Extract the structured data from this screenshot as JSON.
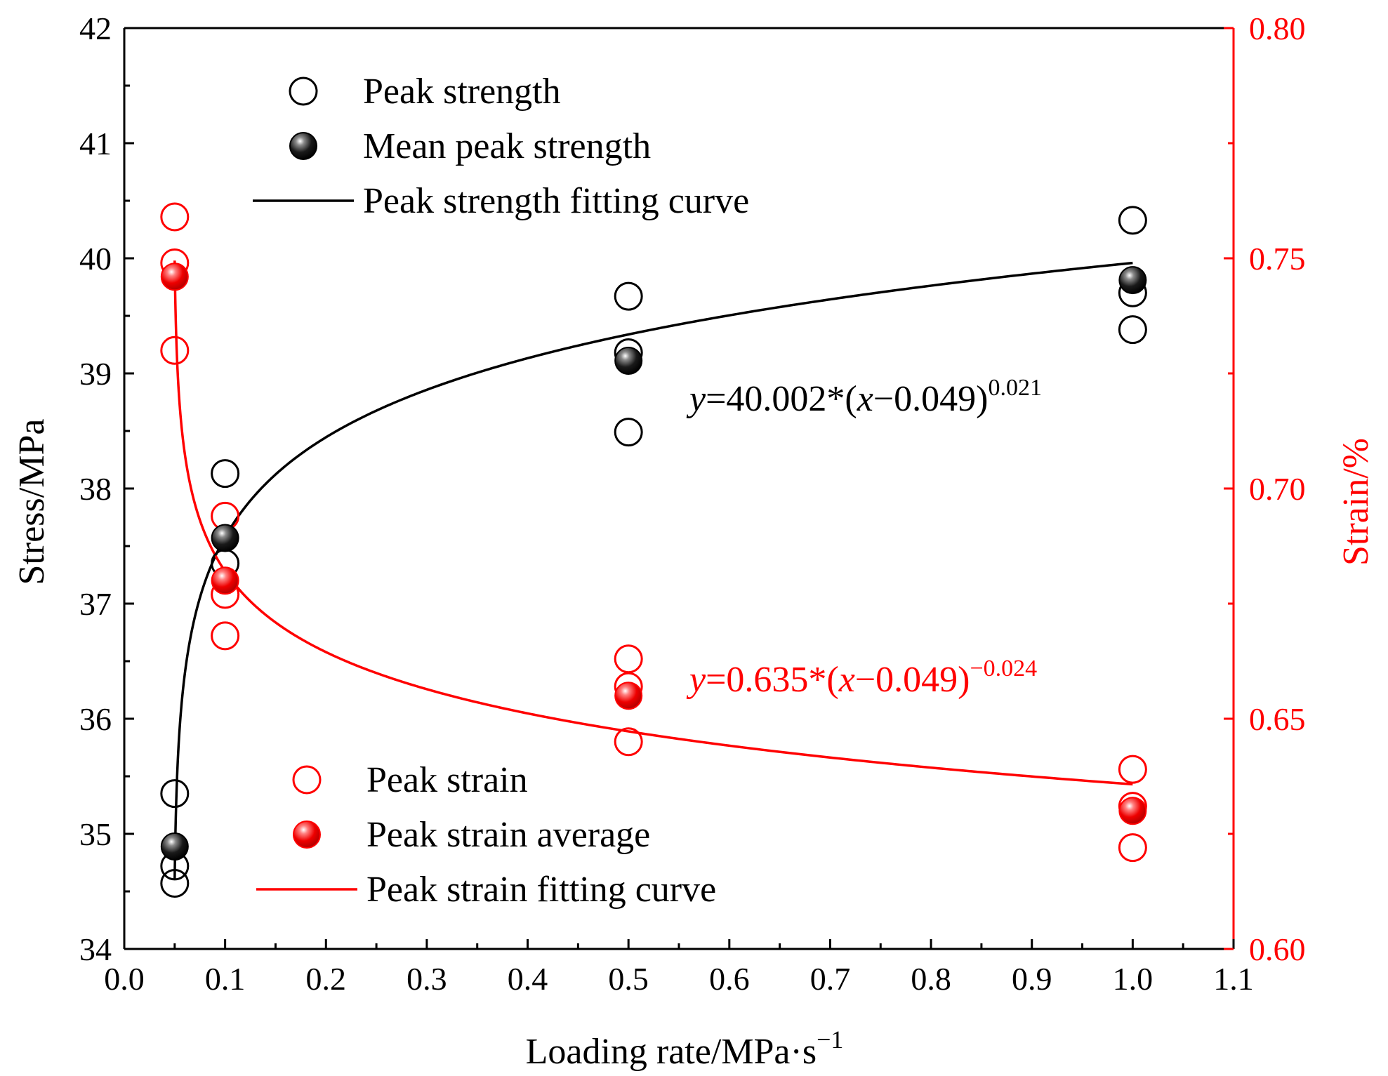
{
  "chart_data": {
    "type": "scatter",
    "xlabel": "Loading rate/MPa·s",
    "xlabel_sup": "−1",
    "ylabel_left": "Stress/MPa",
    "ylabel_right": "Strain/%",
    "xlim": [
      0.0,
      1.1
    ],
    "ylim_left": [
      34,
      42
    ],
    "ylim_right": [
      0.6,
      0.8
    ],
    "x_ticks": [
      "0.0",
      "0.1",
      "0.2",
      "0.3",
      "0.4",
      "0.5",
      "0.6",
      "0.7",
      "0.8",
      "0.9",
      "1.0",
      "1.1"
    ],
    "y_left_ticks": [
      "34",
      "35",
      "36",
      "37",
      "38",
      "39",
      "40",
      "41",
      "42"
    ],
    "y_right_ticks": [
      "0.60",
      "0.65",
      "0.70",
      "0.75",
      "0.80"
    ],
    "grid": false,
    "colors": {
      "stress": "#000000",
      "strain": "#ff0000"
    },
    "legend_top": [
      {
        "label": "Peak strength",
        "marker": "open-circle",
        "color": "#000000"
      },
      {
        "label": "Mean peak strength",
        "marker": "filled-sphere",
        "color": "#000000"
      },
      {
        "label": "Peak strength fitting curve",
        "marker": "line",
        "color": "#000000"
      }
    ],
    "legend_bottom": [
      {
        "label": "Peak strain",
        "marker": "open-circle",
        "color": "#ff0000"
      },
      {
        "label": "Peak strain average",
        "marker": "filled-sphere",
        "color": "#ff0000"
      },
      {
        "label": "Peak strain fitting curve",
        "marker": "line",
        "color": "#ff0000"
      }
    ],
    "series": [
      {
        "name": "Peak strength",
        "axis": "left",
        "marker": "open-circle",
        "points": [
          [
            0.05,
            35.35
          ],
          [
            0.05,
            34.72
          ],
          [
            0.05,
            34.57
          ],
          [
            0.1,
            38.13
          ],
          [
            0.1,
            37.35
          ],
          [
            0.5,
            39.67
          ],
          [
            0.5,
            39.18
          ],
          [
            0.5,
            38.49
          ],
          [
            1.0,
            40.33
          ],
          [
            1.0,
            39.7
          ],
          [
            1.0,
            39.38
          ]
        ]
      },
      {
        "name": "Mean peak strength",
        "axis": "left",
        "marker": "filled-sphere",
        "points": [
          [
            0.05,
            34.89
          ],
          [
            0.1,
            37.57
          ],
          [
            0.5,
            39.11
          ],
          [
            1.0,
            39.81
          ]
        ]
      },
      {
        "name": "Peak strength fitting curve",
        "axis": "left",
        "type": "line",
        "coef": 40.002,
        "offset": 0.049,
        "power": 0.021,
        "x_range": [
          0.05,
          1.0
        ]
      },
      {
        "name": "Peak strain",
        "axis": "right",
        "marker": "open-circle",
        "points": [
          [
            0.05,
            0.759
          ],
          [
            0.05,
            0.749
          ],
          [
            0.05,
            0.73
          ],
          [
            0.1,
            0.694
          ],
          [
            0.1,
            0.677
          ],
          [
            0.1,
            0.668
          ],
          [
            0.5,
            0.663
          ],
          [
            0.5,
            0.657
          ],
          [
            0.5,
            0.645
          ],
          [
            1.0,
            0.639
          ],
          [
            1.0,
            0.631
          ],
          [
            1.0,
            0.622
          ]
        ]
      },
      {
        "name": "Peak strain average",
        "axis": "right",
        "marker": "filled-sphere",
        "points": [
          [
            0.05,
            0.746
          ],
          [
            0.1,
            0.68
          ],
          [
            0.5,
            0.655
          ],
          [
            1.0,
            0.63
          ]
        ]
      },
      {
        "name": "Peak strain fitting curve",
        "axis": "right",
        "type": "line",
        "coef": 0.635,
        "offset": 0.049,
        "power": -0.024,
        "x_range": [
          0.05,
          1.0
        ]
      }
    ],
    "annotations": [
      {
        "series": "stress",
        "var": "y",
        "eq": "=40.002*(",
        "var2": "x",
        "tail": "−0.049)",
        "sup": "0.021"
      },
      {
        "series": "strain",
        "var": "y",
        "eq": "=0.635*(",
        "var2": "x",
        "tail": "−0.049)",
        "sup": "−0.024"
      }
    ]
  }
}
